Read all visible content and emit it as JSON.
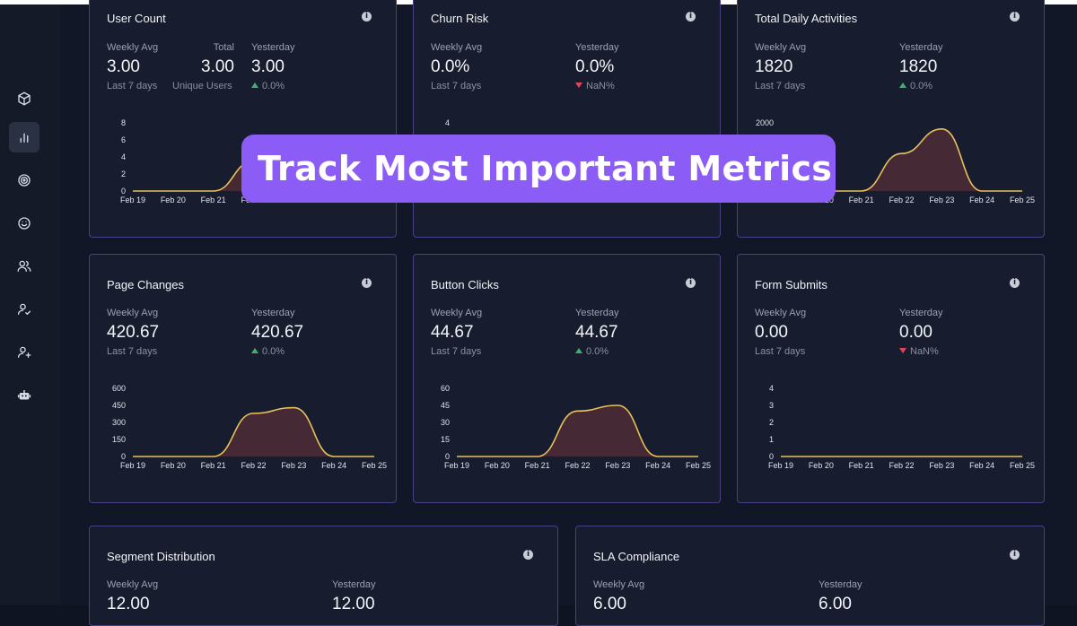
{
  "banner": {
    "text": "Track Most Important Metrics"
  },
  "sidebar": {
    "items": [
      {
        "icon": "box-icon"
      },
      {
        "icon": "bar-chart-icon",
        "active": true
      },
      {
        "icon": "target-icon"
      },
      {
        "icon": "smiley-icon"
      },
      {
        "icon": "users-icon"
      },
      {
        "icon": "user-check-icon"
      },
      {
        "icon": "user-plus-icon"
      },
      {
        "icon": "robot-icon"
      }
    ]
  },
  "colors": {
    "accent_border": "#4a3f86",
    "line": "#e8c15a",
    "fill": "#4a2c36",
    "banner": "#8b5cf6",
    "up": "#41b06e",
    "down": "#e0455a"
  },
  "cards": [
    {
      "title": "User Count",
      "metrics": [
        {
          "label": "Weekly Avg",
          "value": "3.00",
          "sub": "Last 7 days"
        },
        {
          "label": "Total",
          "value": "3.00",
          "sub": "Unique Users"
        },
        {
          "label": "Yesterday",
          "value": "3.00",
          "sub": "0.0%",
          "trend": "up"
        }
      ],
      "chart_data": {
        "type": "area",
        "x": [
          "Feb 19",
          "Feb 20",
          "Feb 21",
          "Feb 22",
          "Feb 23",
          "Feb 24",
          "Feb 25"
        ],
        "yticks": [
          "8",
          "6",
          "4",
          "2",
          "0"
        ],
        "ylim": [
          0,
          8
        ],
        "values": [
          0,
          0,
          0,
          3.5,
          3.5,
          0,
          0
        ]
      }
    },
    {
      "title": "Churn Risk",
      "metrics": [
        {
          "label": "Weekly Avg",
          "value": "0.0%",
          "sub": "Last 7 days"
        },
        {
          "label": "Yesterday",
          "value": "0.0%",
          "sub": "NaN%",
          "trend": "down"
        }
      ],
      "chart_data": {
        "type": "area",
        "x": [
          "Feb 19",
          "Feb 20",
          "Feb 21",
          "Feb 22",
          "Feb 23",
          "Feb 24",
          "Feb 25"
        ],
        "yticks": [
          "4",
          "3",
          "2",
          "1",
          "0"
        ],
        "ylim": [
          0,
          4
        ],
        "values": [
          0,
          0,
          0,
          0,
          0,
          0,
          0
        ]
      }
    },
    {
      "title": "Total Daily Activities",
      "metrics": [
        {
          "label": "Weekly Avg",
          "value": "1820",
          "sub": "Last 7 days"
        },
        {
          "label": "Yesterday",
          "value": "1820",
          "sub": "0.0%",
          "trend": "up"
        }
      ],
      "chart_data": {
        "type": "area",
        "x": [
          "Feb 19",
          "Feb 20",
          "Feb 21",
          "Feb 22",
          "Feb 23",
          "Feb 24",
          "Feb 25"
        ],
        "yticks": [
          "2000"
        ],
        "ylim": [
          0,
          2000
        ],
        "values": [
          0,
          0,
          0,
          1100,
          1820,
          0,
          0
        ]
      }
    },
    {
      "title": "Page Changes",
      "metrics": [
        {
          "label": "Weekly Avg",
          "value": "420.67",
          "sub": "Last 7 days"
        },
        {
          "label": "Yesterday",
          "value": "420.67",
          "sub": "0.0%",
          "trend": "up"
        }
      ],
      "chart_data": {
        "type": "area",
        "x": [
          "Feb 19",
          "Feb 20",
          "Feb 21",
          "Feb 22",
          "Feb 23",
          "Feb 24",
          "Feb 25"
        ],
        "yticks": [
          "600",
          "450",
          "300",
          "150",
          "0"
        ],
        "ylim": [
          0,
          600
        ],
        "values": [
          0,
          0,
          0,
          380,
          430,
          0,
          0
        ]
      }
    },
    {
      "title": "Button Clicks",
      "metrics": [
        {
          "label": "Weekly Avg",
          "value": "44.67",
          "sub": "Last 7 days"
        },
        {
          "label": "Yesterday",
          "value": "44.67",
          "sub": "0.0%",
          "trend": "up"
        }
      ],
      "chart_data": {
        "type": "area",
        "x": [
          "Feb 19",
          "Feb 20",
          "Feb 21",
          "Feb 22",
          "Feb 23",
          "Feb 24",
          "Feb 25"
        ],
        "yticks": [
          "60",
          "45",
          "30",
          "15",
          "0"
        ],
        "ylim": [
          0,
          60
        ],
        "values": [
          0,
          0,
          0,
          40,
          45,
          0,
          0
        ]
      }
    },
    {
      "title": "Form Submits",
      "metrics": [
        {
          "label": "Weekly Avg",
          "value": "0.00",
          "sub": "Last 7 days"
        },
        {
          "label": "Yesterday",
          "value": "0.00",
          "sub": "NaN%",
          "trend": "down"
        }
      ],
      "chart_data": {
        "type": "area",
        "x": [
          "Feb 19",
          "Feb 20",
          "Feb 21",
          "Feb 22",
          "Feb 23",
          "Feb 24",
          "Feb 25"
        ],
        "yticks": [
          "4",
          "3",
          "2",
          "1",
          "0"
        ],
        "ylim": [
          0,
          4
        ],
        "values": [
          0,
          0,
          0,
          0,
          0,
          0,
          0
        ]
      }
    }
  ],
  "bottom_cards": [
    {
      "title": "Segment Distribution",
      "metrics": [
        {
          "label": "Weekly Avg",
          "value": "12.00"
        },
        {
          "label": "Yesterday",
          "value": "12.00"
        }
      ]
    },
    {
      "title": "SLA Compliance",
      "metrics": [
        {
          "label": "Weekly Avg",
          "value": "6.00"
        },
        {
          "label": "Yesterday",
          "value": "6.00"
        }
      ]
    }
  ]
}
